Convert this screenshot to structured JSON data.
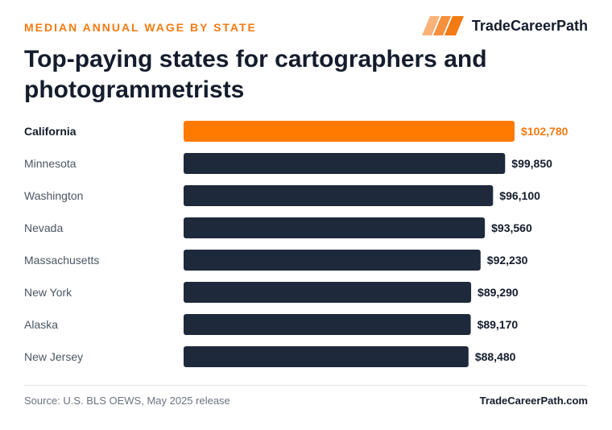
{
  "header": {
    "eyebrow": "MEDIAN ANNUAL WAGE BY STATE",
    "brand_name": "TradeCareerPath",
    "brand_icon": "stripes-logo-icon",
    "title": "Top-paying states for cartographers and photogrammetrists"
  },
  "chart_data": {
    "type": "bar",
    "orientation": "horizontal",
    "categories": [
      "California",
      "Minnesota",
      "Washington",
      "Nevada",
      "Massachusetts",
      "New York",
      "Alaska",
      "New Jersey"
    ],
    "values": [
      102780,
      99850,
      96100,
      93560,
      92230,
      89290,
      89170,
      88480
    ],
    "value_labels": [
      "$102,780",
      "$99,850",
      "$96,100",
      "$93,560",
      "$92,230",
      "$89,290",
      "$89,170",
      "$88,480"
    ],
    "highlight_index": 0,
    "xlim": [
      0,
      102780
    ],
    "grid": false,
    "colors": {
      "highlight": "#ff7a00",
      "bar": "#1e293b",
      "highlight_label": "#f47b13",
      "label": "#141c2c",
      "category_text": "#4b5563",
      "category_highlight_text": "#141c2c"
    }
  },
  "footer": {
    "source": "Source: U.S. BLS OEWS, May 2025 release",
    "site": "TradeCareerPath.com"
  }
}
